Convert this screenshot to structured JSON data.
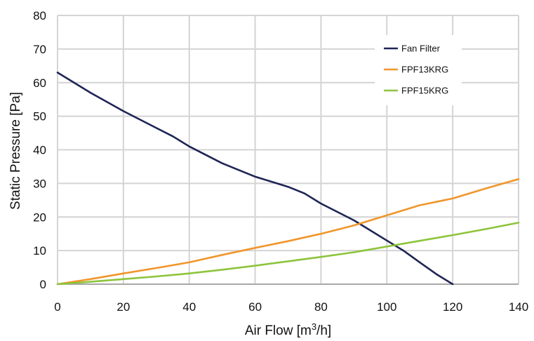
{
  "chart_data": {
    "type": "line",
    "title": "",
    "xlabel": "Air Flow [m",
    "xlabel_sup": "3",
    "xlabel_suffix": "/h]",
    "ylabel": "Static Pressure [Pa]",
    "xlim": [
      0,
      140
    ],
    "ylim": [
      0,
      80
    ],
    "xticks": [
      0,
      20,
      40,
      60,
      80,
      100,
      120,
      140
    ],
    "yticks": [
      0,
      10,
      20,
      30,
      40,
      50,
      60,
      70,
      80
    ],
    "grid": true,
    "legend_position": "top-right",
    "series": [
      {
        "name": "Fan Filter",
        "color": "#1f2456",
        "x": [
          0,
          10,
          20,
          30,
          35,
          40,
          50,
          60,
          70,
          75,
          80,
          90,
          100,
          105,
          110,
          115,
          120
        ],
        "y": [
          63,
          57,
          51.5,
          46.5,
          44,
          41,
          36,
          32,
          29,
          27,
          24,
          19,
          13,
          10,
          6.5,
          3,
          0
        ]
      },
      {
        "name": "FPF13KRG",
        "color": "#f0962b",
        "x": [
          0,
          10,
          20,
          30,
          40,
          50,
          60,
          70,
          80,
          90,
          100,
          110,
          120,
          130,
          140
        ],
        "y": [
          0,
          1.5,
          3.2,
          4.8,
          6.5,
          8.7,
          10.8,
          12.8,
          15,
          17.5,
          20.5,
          23.5,
          25.5,
          28.5,
          31.3
        ]
      },
      {
        "name": "FPF15KRG",
        "color": "#8dc43c",
        "x": [
          0,
          10,
          20,
          30,
          40,
          50,
          60,
          70,
          80,
          90,
          100,
          110,
          120,
          130,
          140
        ],
        "y": [
          0,
          0.7,
          1.5,
          2.3,
          3.2,
          4.3,
          5.5,
          6.8,
          8.1,
          9.5,
          11.2,
          12.9,
          14.6,
          16.4,
          18.3
        ]
      }
    ]
  }
}
